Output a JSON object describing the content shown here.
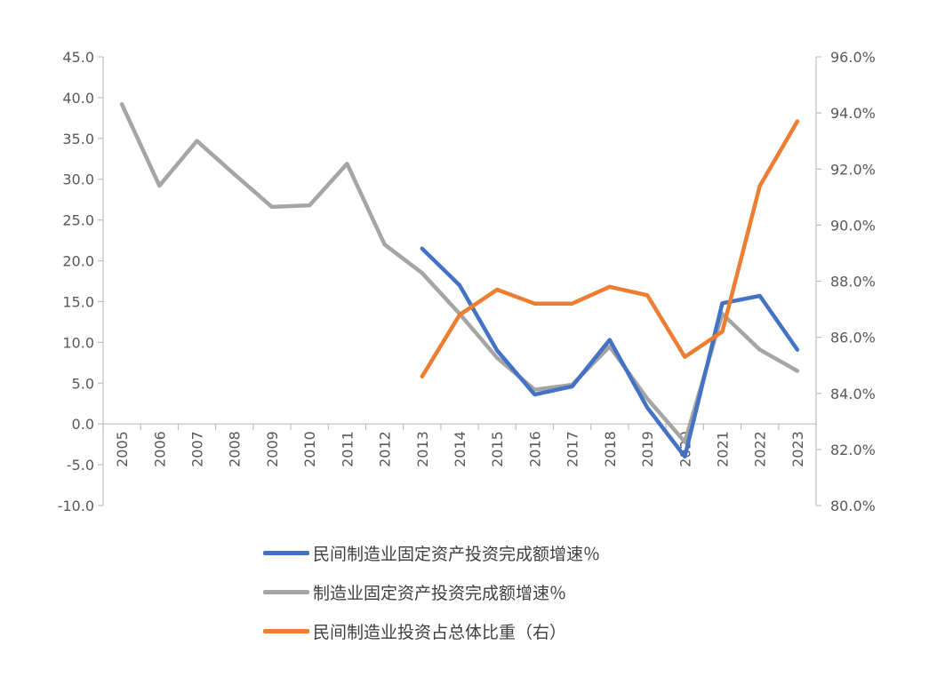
{
  "chart_data": {
    "type": "line",
    "title": "",
    "categories": [
      "2005",
      "2006",
      "2007",
      "2008",
      "2009",
      "2010",
      "2011",
      "2012",
      "2013",
      "2014",
      "2015",
      "2016",
      "2017",
      "2018",
      "2019",
      "2020",
      "2021",
      "2022",
      "2023"
    ],
    "y_left": {
      "ylim": [
        -10,
        45
      ],
      "ticks": [
        "45.0",
        "40.0",
        "35.0",
        "30.0",
        "25.0",
        "20.0",
        "15.0",
        "10.0",
        "5.0",
        "0.0",
        "-5.0",
        "-10.0"
      ]
    },
    "y_right": {
      "ylim": [
        80,
        96
      ],
      "ticks": [
        "96.0%",
        "94.0%",
        "92.0%",
        "90.0%",
        "88.0%",
        "86.0%",
        "84.0%",
        "82.0%",
        "80.0%"
      ]
    },
    "series": [
      {
        "name": "民间制造业固定资产投资完成额增速％",
        "axis": "left",
        "color": "#4472C4",
        "values": [
          null,
          null,
          null,
          null,
          null,
          null,
          null,
          null,
          21.5,
          17.0,
          9.0,
          3.6,
          4.6,
          10.3,
          2.0,
          -4.0,
          14.8,
          15.7,
          9.1
        ]
      },
      {
        "name": "制造业固定资产投资完成额增速％",
        "axis": "left",
        "color": "#A5A5A5",
        "values": [
          39.2,
          29.2,
          34.7,
          30.6,
          26.6,
          26.8,
          31.9,
          22.0,
          18.5,
          13.5,
          8.1,
          4.2,
          4.8,
          9.5,
          3.1,
          -2.2,
          13.5,
          9.1,
          6.5
        ]
      },
      {
        "name": "民间制造业投资占总体比重（右）",
        "axis": "right",
        "color": "#ED7D31",
        "values": [
          null,
          null,
          null,
          null,
          null,
          null,
          null,
          null,
          84.6,
          86.8,
          87.7,
          87.2,
          87.2,
          87.8,
          87.5,
          85.3,
          86.2,
          91.4,
          93.7
        ]
      }
    ],
    "legend_position": "bottom",
    "grid": false
  }
}
